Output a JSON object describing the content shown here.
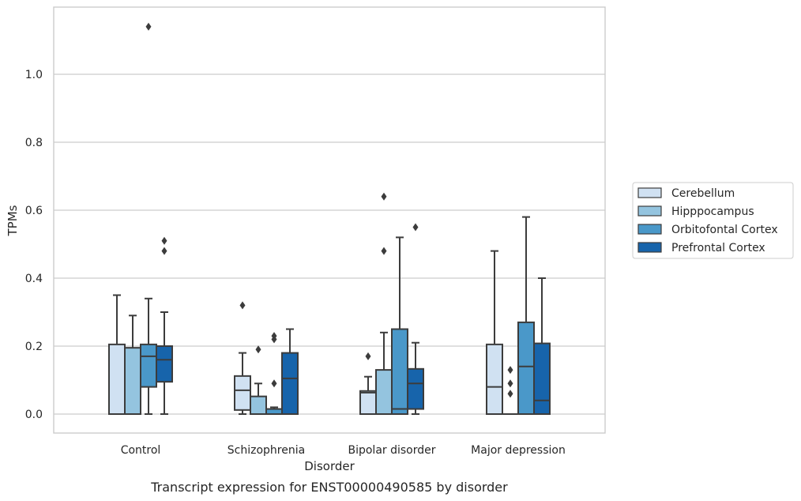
{
  "chart_data": {
    "type": "box",
    "title": "",
    "caption": "Transcript expression for ENST00000490585 by disorder",
    "xlabel": "Disorder",
    "ylabel": "TPMs",
    "ylim": [
      -0.055,
      1.2
    ],
    "yticks": [
      0.0,
      0.2,
      0.4,
      0.6,
      0.8,
      1.0
    ],
    "ytick_labels": [
      "0.0",
      "0.2",
      "0.4",
      "0.6",
      "0.8",
      "1.0"
    ],
    "grid": "horizontal",
    "legend_position": "right",
    "categories": [
      "Control",
      "Schizophrenia",
      "Bipolar disorder",
      "Major depression"
    ],
    "series": [
      {
        "name": "Cerebellum",
        "color": "#d0e1f2",
        "boxes": [
          {
            "q1": 0.0,
            "median": 0.0,
            "q3": 0.205,
            "whisker_low": 0.0,
            "whisker_high": 0.35,
            "outliers": []
          },
          {
            "q1": 0.012,
            "median": 0.07,
            "q3": 0.112,
            "whisker_low": 0.0,
            "whisker_high": 0.18,
            "outliers": [
              0.32
            ]
          },
          {
            "q1": 0.0,
            "median": 0.063,
            "q3": 0.068,
            "whisker_low": 0.0,
            "whisker_high": 0.11,
            "outliers": [
              0.17
            ]
          },
          {
            "q1": 0.0,
            "median": 0.08,
            "q3": 0.205,
            "whisker_low": 0.0,
            "whisker_high": 0.48,
            "outliers": []
          }
        ]
      },
      {
        "name": "Hipppocampus",
        "color": "#94c4df",
        "boxes": [
          {
            "q1": 0.0,
            "median": 0.0,
            "q3": 0.195,
            "whisker_low": 0.0,
            "whisker_high": 0.29,
            "outliers": []
          },
          {
            "q1": 0.0,
            "median": 0.0,
            "q3": 0.052,
            "whisker_low": 0.0,
            "whisker_high": 0.09,
            "outliers": [
              0.19
            ]
          },
          {
            "q1": 0.0,
            "median": 0.0,
            "q3": 0.13,
            "whisker_low": 0.0,
            "whisker_high": 0.24,
            "outliers": [
              0.48,
              0.64
            ]
          },
          {
            "q1": 0.0,
            "median": 0.0,
            "q3": 0.0,
            "whisker_low": 0.0,
            "whisker_high": 0.0,
            "outliers": [
              0.06,
              0.09,
              0.13
            ]
          }
        ]
      },
      {
        "name": "Orbitofontal Cortex",
        "color": "#4a98c9",
        "boxes": [
          {
            "q1": 0.08,
            "median": 0.17,
            "q3": 0.205,
            "whisker_low": 0.0,
            "whisker_high": 0.34,
            "outliers": [
              1.14
            ]
          },
          {
            "q1": 0.0,
            "median": 0.0,
            "q3": 0.015,
            "whisker_low": 0.0,
            "whisker_high": 0.02,
            "outliers": [
              0.09,
              0.22,
              0.23
            ]
          },
          {
            "q1": 0.0,
            "median": 0.015,
            "q3": 0.25,
            "whisker_low": 0.0,
            "whisker_high": 0.52,
            "outliers": []
          },
          {
            "q1": 0.0,
            "median": 0.14,
            "q3": 0.27,
            "whisker_low": 0.0,
            "whisker_high": 0.58,
            "outliers": []
          }
        ]
      },
      {
        "name": "Prefrontal Cortex",
        "color": "#1764ab",
        "boxes": [
          {
            "q1": 0.095,
            "median": 0.16,
            "q3": 0.2,
            "whisker_low": 0.0,
            "whisker_high": 0.3,
            "outliers": [
              0.48,
              0.51
            ]
          },
          {
            "q1": 0.0,
            "median": 0.105,
            "q3": 0.18,
            "whisker_low": 0.0,
            "whisker_high": 0.25,
            "outliers": []
          },
          {
            "q1": 0.015,
            "median": 0.09,
            "q3": 0.133,
            "whisker_low": 0.0,
            "whisker_high": 0.21,
            "outliers": [
              0.55
            ]
          },
          {
            "q1": 0.0,
            "median": 0.04,
            "q3": 0.208,
            "whisker_low": 0.0,
            "whisker_high": 0.4,
            "outliers": []
          }
        ]
      }
    ]
  }
}
